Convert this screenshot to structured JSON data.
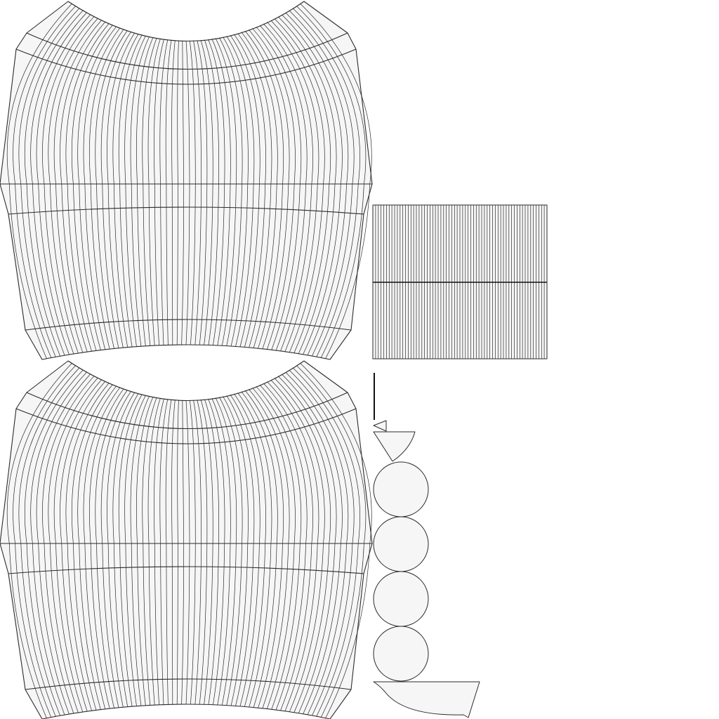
{
  "canvas": {
    "background": "#ffffff",
    "fill_color": "#f6f6f6",
    "line_color": "#2b2b2b"
  },
  "uv_islands": {
    "ribbed_panels": [
      {
        "name": "top-panel",
        "vertical_ribs": 64,
        "horizontal_bands": 6
      },
      {
        "name": "bottom-panel",
        "vertical_ribs": 64,
        "horizontal_bands": 6
      }
    ],
    "striped_rectangle": {
      "vertical_strips": 64,
      "horizontal_seams": 1
    },
    "discs": {
      "count": 4
    },
    "small_pieces": [
      "edge-line",
      "small-triangle",
      "wedge",
      "bowl-piece"
    ]
  }
}
